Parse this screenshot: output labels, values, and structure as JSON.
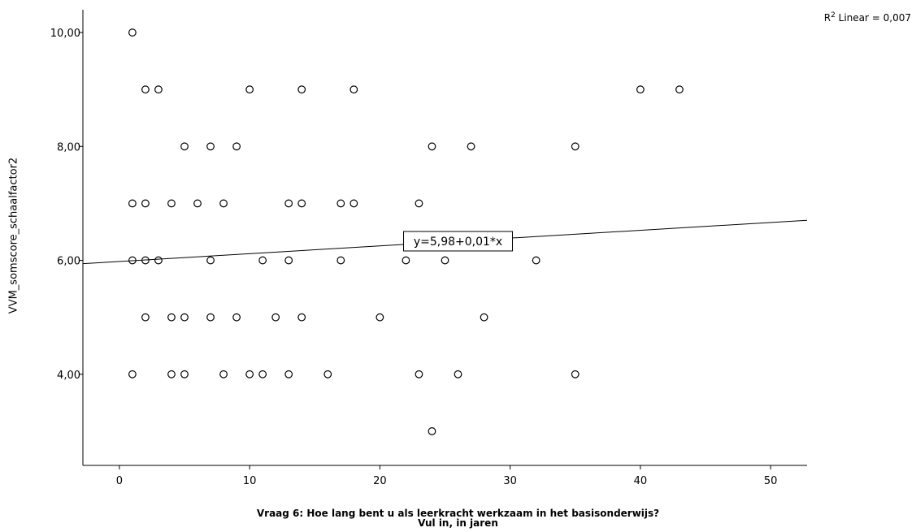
{
  "chart_data": {
    "type": "scatter",
    "xlabel": [
      "Vraag 6: Hoe lang bent u als leerkracht werkzaam in het basisonderwijs?",
      "Vul in, in jaren"
    ],
    "ylabel": "VVM_somscore_schaalfactor2",
    "xlim": [
      -2.8,
      52.8
    ],
    "ylim": [
      2.4,
      10.4
    ],
    "x_ticks": [
      0,
      10,
      20,
      30,
      40,
      50
    ],
    "x_tick_labels": [
      "0",
      "10",
      "20",
      "30",
      "40",
      "50"
    ],
    "y_ticks": [
      4,
      6,
      8,
      10
    ],
    "y_tick_labels": [
      "4,00",
      "6,00",
      "8,00",
      "10,00"
    ],
    "grid": false,
    "points": [
      [
        1,
        10
      ],
      [
        2,
        9
      ],
      [
        3,
        9
      ],
      [
        10,
        9
      ],
      [
        14,
        9
      ],
      [
        18,
        9
      ],
      [
        40,
        9
      ],
      [
        43,
        9
      ],
      [
        5,
        8
      ],
      [
        7,
        8
      ],
      [
        9,
        8
      ],
      [
        24,
        8
      ],
      [
        27,
        8
      ],
      [
        35,
        8
      ],
      [
        1,
        7
      ],
      [
        2,
        7
      ],
      [
        4,
        7
      ],
      [
        6,
        7
      ],
      [
        8,
        7
      ],
      [
        13,
        7
      ],
      [
        14,
        7
      ],
      [
        17,
        7
      ],
      [
        18,
        7
      ],
      [
        23,
        7
      ],
      [
        1,
        6
      ],
      [
        2,
        6
      ],
      [
        3,
        6
      ],
      [
        7,
        6
      ],
      [
        11,
        6
      ],
      [
        13,
        6
      ],
      [
        17,
        6
      ],
      [
        22,
        6
      ],
      [
        25,
        6
      ],
      [
        32,
        6
      ],
      [
        2,
        5
      ],
      [
        4,
        5
      ],
      [
        5,
        5
      ],
      [
        7,
        5
      ],
      [
        9,
        5
      ],
      [
        12,
        5
      ],
      [
        14,
        5
      ],
      [
        20,
        5
      ],
      [
        28,
        5
      ],
      [
        1,
        4
      ],
      [
        4,
        4
      ],
      [
        5,
        4
      ],
      [
        8,
        4
      ],
      [
        10,
        4
      ],
      [
        11,
        4
      ],
      [
        13,
        4
      ],
      [
        16,
        4
      ],
      [
        23,
        4
      ],
      [
        26,
        4
      ],
      [
        35,
        4
      ],
      [
        24,
        3
      ]
    ],
    "fit_line": {
      "intercept": 5.98,
      "slope": 0.0137,
      "label": "y=5,98+0,01*x",
      "label_x": 26
    },
    "r2_label": {
      "prefix": "R",
      "sup": "2",
      "rest": " Linear = 0,007"
    }
  }
}
